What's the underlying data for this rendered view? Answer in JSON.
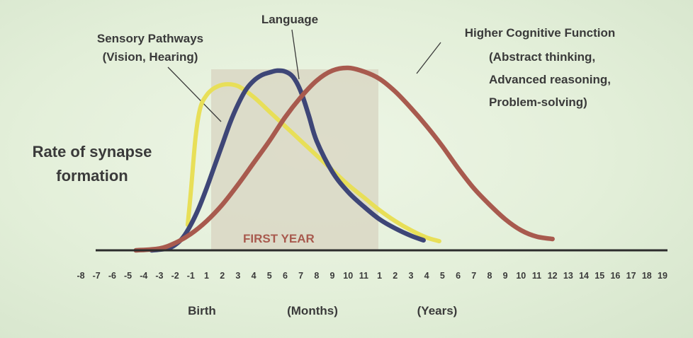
{
  "chart_data": {
    "type": "line",
    "ylabel": [
      "Rate of synapse",
      "formation"
    ],
    "x_ticks": [
      "-8",
      "-7",
      "-6",
      "-5",
      "-4",
      "-3",
      "-2",
      "-1",
      "1",
      "2",
      "3",
      "4",
      "5",
      "6",
      "7",
      "8",
      "9",
      "10",
      "11",
      "1",
      "2",
      "3",
      "4",
      "5",
      "6",
      "7",
      "8",
      "9",
      "10",
      "11",
      "12",
      "13",
      "14",
      "15",
      "16",
      "17",
      "18",
      "19"
    ],
    "x_group_labels": [
      "Birth",
      "(Months)",
      "(Years)"
    ],
    "highlight_region": {
      "label": "FIRST YEAR",
      "from_tick": 8,
      "to_tick": 18
    },
    "series": [
      {
        "name": "Sensory Pathways",
        "name_line2": "(Vision, Hearing)",
        "color": "#e8df58",
        "points": [
          [
            6.8,
            0.14
          ],
          [
            7,
            0.32
          ],
          [
            7.3,
            0.62
          ],
          [
            7.6,
            0.78
          ],
          [
            8,
            0.85
          ],
          [
            8.5,
            0.89
          ],
          [
            9.2,
            0.91
          ],
          [
            10,
            0.9
          ],
          [
            11,
            0.84
          ],
          [
            12,
            0.76
          ],
          [
            13,
            0.68
          ],
          [
            14,
            0.6
          ],
          [
            15,
            0.52
          ],
          [
            16,
            0.44
          ],
          [
            17,
            0.36
          ],
          [
            18,
            0.29
          ],
          [
            19,
            0.22
          ],
          [
            20,
            0.16
          ],
          [
            21,
            0.11
          ],
          [
            22,
            0.07
          ],
          [
            22.8,
            0.05
          ]
        ]
      },
      {
        "name": "Language",
        "color": "#3e4677",
        "points": [
          [
            4.5,
            0
          ],
          [
            5.5,
            0.01
          ],
          [
            6,
            0.03
          ],
          [
            6.5,
            0.07
          ],
          [
            7,
            0.14
          ],
          [
            7.5,
            0.23
          ],
          [
            8,
            0.34
          ],
          [
            8.5,
            0.46
          ],
          [
            9,
            0.58
          ],
          [
            9.5,
            0.7
          ],
          [
            10,
            0.8
          ],
          [
            10.5,
            0.88
          ],
          [
            11,
            0.93
          ],
          [
            11.5,
            0.96
          ],
          [
            12,
            0.975
          ],
          [
            12.5,
            0.985
          ],
          [
            13,
            0.98
          ],
          [
            13.5,
            0.95
          ],
          [
            14,
            0.87
          ],
          [
            14.5,
            0.74
          ],
          [
            15,
            0.6
          ],
          [
            16,
            0.43
          ],
          [
            17,
            0.32
          ],
          [
            18,
            0.24
          ],
          [
            19,
            0.17
          ],
          [
            20,
            0.12
          ],
          [
            21,
            0.08
          ],
          [
            21.8,
            0.055
          ]
        ]
      },
      {
        "name": "Higher Cognitive Function",
        "name_lines": [
          "(Abstract thinking,",
          "Advanced reasoning,",
          "Problem-solving)"
        ],
        "color": "#a85a4e",
        "points": [
          [
            3.5,
            0
          ],
          [
            5,
            0.01
          ],
          [
            6,
            0.04
          ],
          [
            7,
            0.09
          ],
          [
            8,
            0.16
          ],
          [
            9,
            0.25
          ],
          [
            10,
            0.36
          ],
          [
            11,
            0.48
          ],
          [
            12,
            0.6
          ],
          [
            13,
            0.73
          ],
          [
            14,
            0.84
          ],
          [
            15,
            0.93
          ],
          [
            16,
            0.985
          ],
          [
            17,
            1.0
          ],
          [
            18,
            0.98
          ],
          [
            19,
            0.94
          ],
          [
            20,
            0.87
          ],
          [
            21,
            0.78
          ],
          [
            22,
            0.68
          ],
          [
            23,
            0.57
          ],
          [
            24,
            0.45
          ],
          [
            25,
            0.34
          ],
          [
            26,
            0.25
          ],
          [
            27,
            0.17
          ],
          [
            28,
            0.11
          ],
          [
            29,
            0.075
          ],
          [
            30,
            0.062
          ]
        ]
      }
    ],
    "ylim": [
      0,
      1
    ],
    "grid": false
  }
}
